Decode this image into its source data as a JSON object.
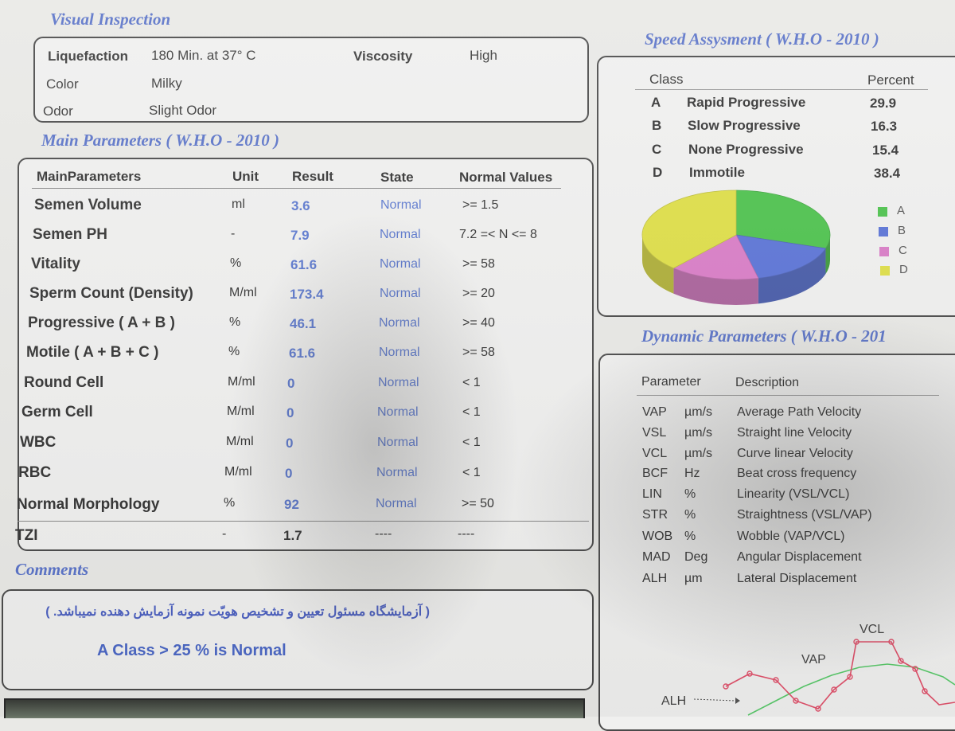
{
  "visual_inspection": {
    "title": "Visual Inspection",
    "liquefaction_label": "Liquefaction",
    "liquefaction_value": "180 Min. at 37° C",
    "viscosity_label": "Viscosity",
    "viscosity_value": "High",
    "color_label": "Color",
    "color_value": "Milky",
    "odor_label": "Odor",
    "odor_value": "Slight Odor"
  },
  "main_parameters": {
    "title": "Main Parameters ( W.H.O - 2010 )",
    "headers": [
      "MainParameters",
      "Unit",
      "Result",
      "State",
      "Normal Values"
    ],
    "rows": [
      {
        "name": "Semen Volume",
        "unit": "ml",
        "result": "3.6",
        "state": "Normal",
        "normal": ">= 1.5"
      },
      {
        "name": "Semen PH",
        "unit": "-",
        "result": "7.9",
        "state": "Normal",
        "normal": "7.2 =< N <= 8"
      },
      {
        "name": "Vitality",
        "unit": "%",
        "result": "61.6",
        "state": "Normal",
        "normal": ">= 58"
      },
      {
        "name": "Sperm Count (Density)",
        "unit": "M/ml",
        "result": "173.4",
        "state": "Normal",
        "normal": ">= 20"
      },
      {
        "name": "Progressive ( A + B )",
        "unit": "%",
        "result": "46.1",
        "state": "Normal",
        "normal": ">= 40"
      },
      {
        "name": "Motile ( A + B + C )",
        "unit": "%",
        "result": "61.6",
        "state": "Normal",
        "normal": ">= 58"
      },
      {
        "name": "Round Cell",
        "unit": "M/ml",
        "result": "0",
        "state": "Normal",
        "normal": "< 1"
      },
      {
        "name": "Germ Cell",
        "unit": "M/ml",
        "result": "0",
        "state": "Normal",
        "normal": "< 1"
      },
      {
        "name": "WBC",
        "unit": "M/ml",
        "result": "0",
        "state": "Normal",
        "normal": "< 1"
      },
      {
        "name": "RBC",
        "unit": "M/ml",
        "result": "0",
        "state": "Normal",
        "normal": "< 1"
      },
      {
        "name": "Normal Morphology",
        "unit": "%",
        "result": "92",
        "state": "Normal",
        "normal": ">= 50"
      },
      {
        "name": "TZI",
        "unit": "-",
        "result": "1.7",
        "state": "----",
        "normal": "----"
      }
    ]
  },
  "comments": {
    "title": "Comments",
    "persian_note": "( آزمایشگاه مسئول تعیین و تشخیص هویّت نمونه آزمایش دهنده نمیباشد. )",
    "note": "A Class > 25 % is Normal"
  },
  "speed_assessment": {
    "title": "Speed Assysment ( W.H.O - 2010 )",
    "class_header": "Class",
    "percent_header": "Percent",
    "rows": [
      {
        "cls": "A",
        "name": "Rapid Progressive",
        "percent": "29.9"
      },
      {
        "cls": "B",
        "name": "Slow Progressive",
        "percent": "16.3"
      },
      {
        "cls": "C",
        "name": "None Progressive",
        "percent": "15.4"
      },
      {
        "cls": "D",
        "name": "Immotile",
        "percent": "38.4"
      }
    ],
    "legend": [
      "A",
      "B",
      "C",
      "D"
    ],
    "colors": {
      "A": "#4cc24c",
      "B": "#5a73d6",
      "C": "#d97cc6",
      "D": "#dede46"
    }
  },
  "dynamic_parameters": {
    "title": "Dynamic Parameters ( W.H.O - 201",
    "param_header": "Parameter",
    "desc_header": "Description",
    "rows": [
      {
        "abbr": "VAP",
        "unit": "µm/s",
        "desc": "Average Path Velocity"
      },
      {
        "abbr": "VSL",
        "unit": "µm/s",
        "desc": "Straight line Velocity"
      },
      {
        "abbr": "VCL",
        "unit": "µm/s",
        "desc": "Curve linear Velocity"
      },
      {
        "abbr": "BCF",
        "unit": "Hz",
        "desc": "Beat cross frequency"
      },
      {
        "abbr": "LIN",
        "unit": "%",
        "desc": "Linearity (VSL/VCL)"
      },
      {
        "abbr": "STR",
        "unit": "%",
        "desc": "Straightness (VSL/VAP)"
      },
      {
        "abbr": "WOB",
        "unit": "%",
        "desc": "Wobble (VAP/VCL)"
      },
      {
        "abbr": "MAD",
        "unit": "Deg",
        "desc": "Angular Displacement"
      },
      {
        "abbr": "ALH",
        "unit": "µm",
        "desc": "Lateral Displacement"
      }
    ],
    "diagram_labels": {
      "vcl": "VCL",
      "vap": "VAP",
      "alh": "ALH"
    }
  },
  "chart_data": {
    "type": "pie",
    "categories": [
      "A",
      "B",
      "C",
      "D"
    ],
    "values": [
      29.9,
      16.3,
      15.4,
      38.4
    ],
    "colors": [
      "#4cc24c",
      "#5a73d6",
      "#d97cc6",
      "#dede46"
    ],
    "legend_position": "right"
  }
}
